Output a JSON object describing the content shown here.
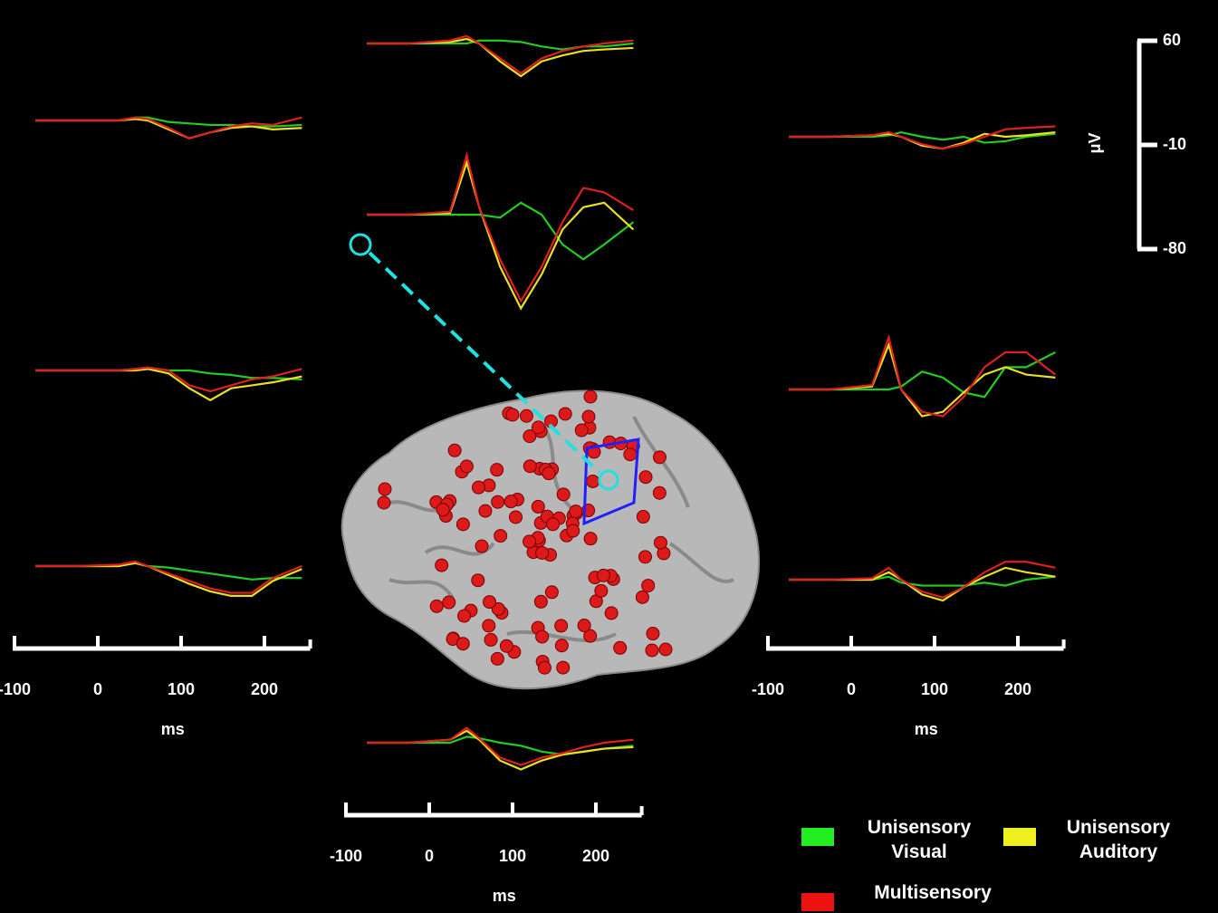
{
  "chart_data": [
    {
      "type": "line",
      "x": [
        -75,
        -25,
        25,
        45,
        60,
        85,
        110,
        135,
        160,
        185,
        210,
        245
      ],
      "series": [
        {
          "color": "#22cc22",
          "values": [
            0,
            0,
            0,
            2,
            2,
            -1,
            -2,
            -3,
            -3,
            -4,
            -4,
            -3
          ]
        },
        {
          "color": "#e8e020",
          "values": [
            0,
            0,
            0,
            1,
            0,
            -6,
            -12,
            -8,
            -5,
            -4,
            -6,
            -5
          ]
        },
        {
          "color": "#e02020",
          "values": [
            0,
            0,
            0,
            2,
            1,
            -5,
            -12,
            -8,
            -4,
            -2,
            -3,
            2
          ]
        }
      ]
    },
    {
      "type": "line",
      "x": [
        -75,
        -25,
        25,
        45,
        60,
        85,
        110,
        135,
        160,
        185,
        210,
        245
      ],
      "series": [
        {
          "color": "#22cc22",
          "values": [
            0,
            0,
            0,
            1,
            2,
            0,
            0,
            -2,
            -3,
            -5,
            -5,
            -6
          ]
        },
        {
          "color": "#e8e020",
          "values": [
            0,
            0,
            0,
            0,
            1,
            -2,
            -12,
            -20,
            -12,
            -10,
            -8,
            -4
          ]
        },
        {
          "color": "#e02020",
          "values": [
            0,
            0,
            0,
            1,
            2,
            0,
            -10,
            -14,
            -10,
            -6,
            -4,
            1
          ]
        }
      ]
    },
    {
      "type": "line",
      "x": [
        -75,
        -25,
        25,
        45,
        60,
        85,
        110,
        135,
        160,
        185,
        210,
        245
      ],
      "series": [
        {
          "color": "#22cc22",
          "values": [
            0,
            0,
            0,
            2,
            0,
            -1,
            -3,
            -5,
            -7,
            -9,
            -8,
            -8
          ]
        },
        {
          "color": "#e8e020",
          "values": [
            0,
            0,
            0,
            2,
            0,
            -6,
            -12,
            -17,
            -20,
            -20,
            -10,
            -2
          ]
        },
        {
          "color": "#e02020",
          "values": [
            0,
            0,
            1,
            3,
            0,
            -5,
            -10,
            -15,
            -18,
            -18,
            -8,
            0
          ]
        }
      ]
    },
    {
      "type": "line",
      "x": [
        -75,
        -25,
        25,
        45,
        60,
        85,
        110,
        135,
        160,
        185,
        210,
        245
      ],
      "series": [
        {
          "color": "#22cc22",
          "values": [
            0,
            0,
            0,
            0,
            2,
            2,
            1,
            -2,
            -4,
            -2,
            -2,
            0
          ]
        },
        {
          "color": "#e8e020",
          "values": [
            0,
            0,
            1,
            3,
            0,
            -12,
            -22,
            -12,
            -8,
            -5,
            -4,
            -3
          ]
        },
        {
          "color": "#e02020",
          "values": [
            0,
            0,
            2,
            5,
            0,
            -10,
            -20,
            -10,
            -5,
            -2,
            0,
            2
          ]
        }
      ]
    },
    {
      "type": "line",
      "x": [
        -75,
        -25,
        25,
        45,
        60,
        85,
        110,
        135,
        160,
        185,
        210,
        245
      ],
      "series": [
        {
          "color": "#22cc22",
          "values": [
            0,
            0,
            0,
            0,
            0,
            -2,
            8,
            0,
            -20,
            -30,
            -20,
            -5
          ]
        },
        {
          "color": "#e8e020",
          "values": [
            0,
            0,
            1,
            35,
            5,
            -35,
            -63,
            -40,
            -10,
            5,
            8,
            -10
          ]
        },
        {
          "color": "#e02020",
          "values": [
            0,
            0,
            2,
            40,
            5,
            -30,
            -58,
            -35,
            -5,
            18,
            15,
            3
          ]
        }
      ]
    },
    {
      "type": "line",
      "x": [
        -75,
        -25,
        25,
        45,
        60,
        85,
        110,
        135,
        160,
        185,
        210,
        245
      ],
      "series": [
        {
          "color": "#22cc22",
          "values": [
            0,
            0,
            0,
            4,
            3,
            0,
            -2,
            -6,
            -8,
            -6,
            -4,
            -2
          ]
        },
        {
          "color": "#e8e020",
          "values": [
            0,
            0,
            2,
            8,
            2,
            -12,
            -18,
            -12,
            -8,
            -6,
            -4,
            -3
          ]
        },
        {
          "color": "#e02020",
          "values": [
            0,
            0,
            2,
            10,
            3,
            -10,
            -15,
            -10,
            -7,
            -3,
            0,
            2
          ]
        }
      ]
    },
    {
      "type": "line",
      "x": [
        -75,
        -25,
        25,
        45,
        60,
        85,
        110,
        135,
        160,
        185,
        210,
        245
      ],
      "series": [
        {
          "color": "#22cc22",
          "values": [
            0,
            0,
            0,
            1,
            3,
            0,
            -2,
            0,
            -4,
            -3,
            0,
            2
          ]
        },
        {
          "color": "#e8e020",
          "values": [
            0,
            0,
            1,
            2,
            0,
            -6,
            -8,
            -4,
            2,
            0,
            1,
            3
          ]
        },
        {
          "color": "#e02020",
          "values": [
            0,
            0,
            1,
            3,
            0,
            -5,
            -8,
            -5,
            0,
            5,
            6,
            7
          ]
        }
      ]
    },
    {
      "type": "line",
      "x": [
        -75,
        -25,
        25,
        45,
        60,
        85,
        110,
        135,
        160,
        185,
        210,
        245
      ],
      "series": [
        {
          "color": "#22cc22",
          "values": [
            0,
            0,
            0,
            0,
            2,
            12,
            8,
            -2,
            -5,
            15,
            15,
            25
          ]
        },
        {
          "color": "#e8e020",
          "values": [
            0,
            0,
            2,
            30,
            0,
            -18,
            -15,
            -2,
            10,
            15,
            10,
            8
          ]
        },
        {
          "color": "#e02020",
          "values": [
            0,
            0,
            3,
            35,
            0,
            -15,
            -18,
            -5,
            15,
            25,
            25,
            10
          ]
        }
      ]
    },
    {
      "type": "line",
      "x": [
        -75,
        -25,
        25,
        45,
        60,
        85,
        110,
        135,
        160,
        185,
        210,
        245
      ],
      "series": [
        {
          "color": "#22cc22",
          "values": [
            0,
            0,
            0,
            2,
            -2,
            -4,
            -4,
            -4,
            -2,
            -4,
            0,
            2
          ]
        },
        {
          "color": "#e8e020",
          "values": [
            0,
            0,
            0,
            5,
            0,
            -10,
            -14,
            -5,
            2,
            8,
            5,
            2
          ]
        },
        {
          "color": "#e02020",
          "values": [
            0,
            0,
            1,
            8,
            0,
            -8,
            -12,
            -5,
            5,
            12,
            12,
            8
          ]
        }
      ]
    }
  ],
  "x_axes": [
    {
      "xticks": [
        -100,
        0,
        100,
        200
      ],
      "xlabel": "ms"
    },
    {
      "xticks": [
        -100,
        0,
        100,
        200
      ],
      "xlabel": "ms"
    },
    {
      "xticks": [
        -100,
        0,
        100,
        200
      ],
      "xlabel": "ms"
    }
  ],
  "scale_bar": {
    "label": "μV",
    "ticks": [
      60,
      -10,
      -80
    ]
  },
  "legend": [
    {
      "name": "Unisensory Visual",
      "color": "#22ee22"
    },
    {
      "name": "Unisensory Auditory",
      "color": "#f0f020"
    },
    {
      "name": "Multisensory",
      "color": "#ee1111"
    }
  ]
}
